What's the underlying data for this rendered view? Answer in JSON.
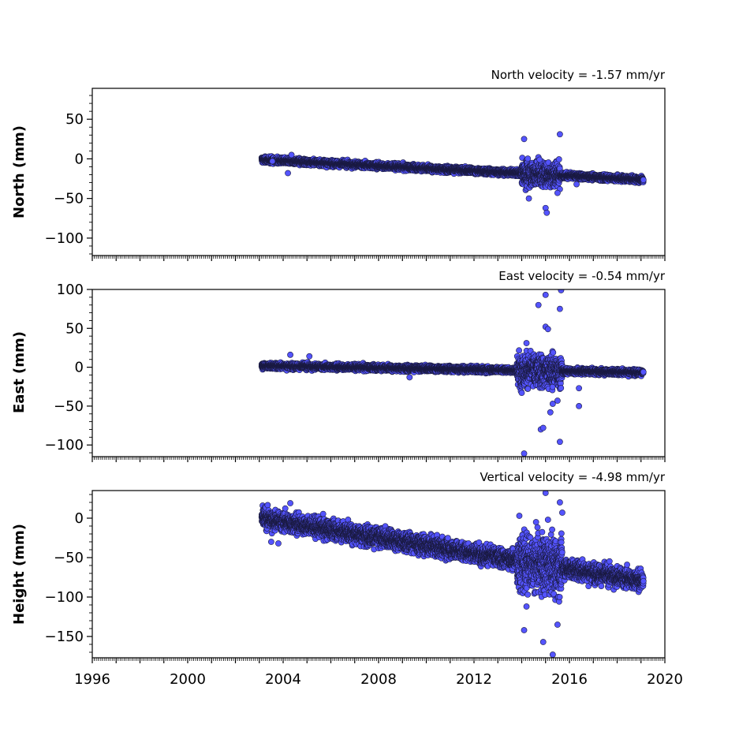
{
  "colors": {
    "marker_fill": "#5454ff",
    "marker_edge": "#1a1a40",
    "axes": "#000000",
    "background": "#ffffff"
  },
  "chart_data": [
    {
      "type": "scatter",
      "title": "North velocity = -1.57 mm/yr",
      "ylabel": "North (mm)",
      "xlim": [
        1996,
        2020
      ],
      "ylim": [
        -122,
        89
      ],
      "yticks": [
        50,
        0,
        -50,
        -100
      ],
      "xticks": [],
      "grid": false,
      "series": [
        {
          "model": {
            "start": 2003.1,
            "end": 2019.1,
            "offset": -1,
            "velocity": -1.57,
            "scatter": 2.5
          },
          "noisy_window": {
            "start": 2014.0,
            "end": 2015.6,
            "scatter": 11
          },
          "outliers": [
            {
              "x": 2003.55,
              "y": -3
            },
            {
              "x": 2004.2,
              "y": -18
            },
            {
              "x": 2004.35,
              "y": 5
            },
            {
              "x": 2014.1,
              "y": 25
            },
            {
              "x": 2014.3,
              "y": -50
            },
            {
              "x": 2014.7,
              "y": 2
            },
            {
              "x": 2014.75,
              "y": -1
            },
            {
              "x": 2015.0,
              "y": -62
            },
            {
              "x": 2015.05,
              "y": -68
            },
            {
              "x": 2015.5,
              "y": -43
            },
            {
              "x": 2015.6,
              "y": 31
            },
            {
              "x": 2016.3,
              "y": -32
            }
          ]
        }
      ]
    },
    {
      "type": "scatter",
      "title": "East velocity = -0.54 mm/yr",
      "ylabel": "East (mm)",
      "xlim": [
        1996,
        2020
      ],
      "ylim": [
        -115,
        100
      ],
      "yticks": [
        100,
        50,
        0,
        -50,
        -100
      ],
      "xticks": [],
      "grid": false,
      "series": [
        {
          "model": {
            "start": 2003.1,
            "end": 2019.1,
            "offset": 2,
            "velocity": -0.54,
            "scatter": 2.5
          },
          "noisy_window": {
            "start": 2013.8,
            "end": 2015.7,
            "scatter": 14
          },
          "outliers": [
            {
              "x": 2004.3,
              "y": 16
            },
            {
              "x": 2005.1,
              "y": 14
            },
            {
              "x": 2009.3,
              "y": -13
            },
            {
              "x": 2014.0,
              "y": -33
            },
            {
              "x": 2014.2,
              "y": 31
            },
            {
              "x": 2014.1,
              "y": -111
            },
            {
              "x": 2014.7,
              "y": 80
            },
            {
              "x": 2014.8,
              "y": -80
            },
            {
              "x": 2014.9,
              "y": -78
            },
            {
              "x": 2015.0,
              "y": 93
            },
            {
              "x": 2015.0,
              "y": 52
            },
            {
              "x": 2015.1,
              "y": 49
            },
            {
              "x": 2015.2,
              "y": -58
            },
            {
              "x": 2015.3,
              "y": -47
            },
            {
              "x": 2015.5,
              "y": -43
            },
            {
              "x": 2015.6,
              "y": -96
            },
            {
              "x": 2015.6,
              "y": 75
            },
            {
              "x": 2015.65,
              "y": 99
            },
            {
              "x": 2016.4,
              "y": -27
            },
            {
              "x": 2016.4,
              "y": -50
            }
          ]
        }
      ]
    },
    {
      "type": "scatter",
      "title": "Vertical velocity = -4.98 mm/yr",
      "ylabel": "Height (mm)",
      "xlabel": "",
      "xlim": [
        1996,
        2020
      ],
      "ylim": [
        -177,
        35
      ],
      "yticks": [
        0,
        -50,
        -100,
        -150
      ],
      "xticks": [
        1996,
        2000,
        2004,
        2008,
        2012,
        2016,
        2020
      ],
      "grid": false,
      "series": [
        {
          "model": {
            "start": 2003.1,
            "end": 2019.1,
            "offset": 0,
            "velocity": -4.98,
            "scatter": 8
          },
          "noisy_window": {
            "start": 2013.8,
            "end": 2015.7,
            "scatter": 24
          },
          "outliers": [
            {
              "x": 2003.5,
              "y": -30
            },
            {
              "x": 2003.8,
              "y": -32
            },
            {
              "x": 2004.3,
              "y": 19
            },
            {
              "x": 2013.9,
              "y": 3
            },
            {
              "x": 2014.1,
              "y": -142
            },
            {
              "x": 2014.2,
              "y": -112
            },
            {
              "x": 2014.6,
              "y": -5
            },
            {
              "x": 2014.9,
              "y": -157
            },
            {
              "x": 2015.0,
              "y": 32
            },
            {
              "x": 2015.1,
              "y": -2
            },
            {
              "x": 2015.3,
              "y": -173
            },
            {
              "x": 2015.5,
              "y": -135
            },
            {
              "x": 2015.6,
              "y": 20
            },
            {
              "x": 2015.7,
              "y": 7
            }
          ]
        }
      ]
    }
  ]
}
